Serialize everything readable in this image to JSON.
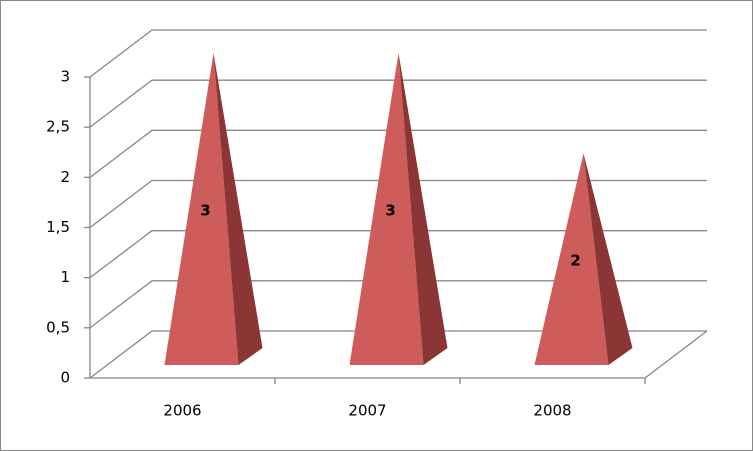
{
  "chart_data": {
    "type": "pyramid",
    "categories": [
      "2006",
      "2007",
      "2008"
    ],
    "values": [
      3,
      3,
      2
    ],
    "color": "#cd5c5a",
    "side_color": "#8b3534",
    "ylim": [
      0,
      3
    ],
    "yticks": [
      0,
      {
        "value": 0.5,
        "label": "0,5"
      },
      1,
      {
        "value": 1.5,
        "label": "1,5"
      },
      2,
      {
        "value": 2.5,
        "label": "2,5"
      },
      3
    ],
    "grid": true
  }
}
